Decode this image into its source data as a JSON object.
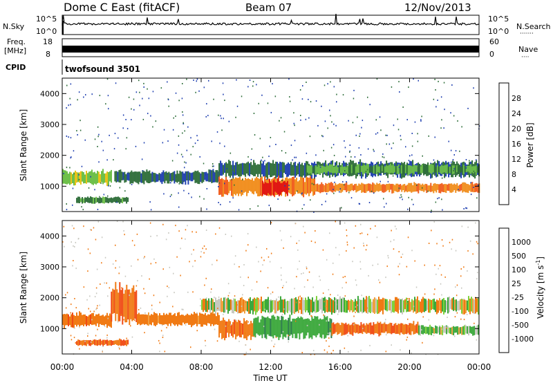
{
  "header": {
    "title": "Dome C East (fitACF)",
    "beam": "Beam 07",
    "date": "12/Nov/2013"
  },
  "nsky_panel": {
    "left_label": "N.Sky",
    "left_tick_top": "10^5",
    "left_tick_bottom": "10^0",
    "right_tick_top": "10^5",
    "right_tick_bottom": "10^0",
    "right_label": "N.Search",
    "right_label_dots": "·······"
  },
  "freq_panel": {
    "left_label_1": "Freq.",
    "left_label_2": "[MHz]",
    "left_tick_top": "18",
    "left_tick_bottom": "8",
    "right_tick_top": "60",
    "right_tick_bottom": "0",
    "right_label": "Nave",
    "right_label_dots": "····"
  },
  "cpid_panel": {
    "left_label": "CPID",
    "program": "twofsound 3501"
  },
  "power_panel": {
    "ylabel": "Slant Range [km]",
    "yticks": [
      "4000",
      "3000",
      "2000",
      "1000"
    ],
    "colorbar_label": "Power [dB]",
    "colorbar_ticks": [
      "28",
      "24",
      "20",
      "16",
      "12",
      "8",
      "4"
    ],
    "colors": [
      "#0a1cf0",
      "#1f3fb0",
      "#2f6e3a",
      "#6ec04a",
      "#e8c21a",
      "#f08c1a",
      "#f05a1a",
      "#e01414"
    ]
  },
  "velocity_panel": {
    "ylabel": "Slant Range [km]",
    "yticks": [
      "4000",
      "3000",
      "2000",
      "1000"
    ],
    "colorbar_label": "Velocity [m s",
    "colorbar_label_sup": "-1",
    "colorbar_label_end": "]",
    "colorbar_ticks": [
      "1000",
      "500",
      "100",
      "25",
      "-25",
      "-100",
      "-500",
      "-1000"
    ],
    "colors": [
      "#1a3cc8",
      "#2a7a4a",
      "#3ca83c",
      "#7ed23c",
      "#c8c8c0",
      "#f0a040",
      "#f07a14",
      "#f04a14",
      "#e01414"
    ]
  },
  "xaxis": {
    "label": "Time UT",
    "ticks": [
      "00:00",
      "04:00",
      "08:00",
      "12:00",
      "16:00",
      "20:00",
      "00:00"
    ]
  },
  "chart_data": {
    "type": "heatmap",
    "title": "Dome C East (fitACF)",
    "xlabel": "Time UT",
    "ylabel": "Slant Range [km]",
    "xlim": [
      0,
      24
    ],
    "ylim": [
      180,
      4500
    ],
    "series": [
      {
        "name": "Power [dB]",
        "range": [
          0,
          30
        ],
        "bands": [
          {
            "t0": 0.0,
            "t1": 2.8,
            "r_low": 1050,
            "r_high": 1500,
            "value": 14
          },
          {
            "t0": 0.8,
            "t1": 3.8,
            "r_low": 450,
            "r_high": 650,
            "value": 10
          },
          {
            "t0": 3.0,
            "t1": 9.0,
            "r_low": 1100,
            "r_high": 1500,
            "value": 8
          },
          {
            "t0": 9.0,
            "t1": 14.5,
            "r_low": 700,
            "r_high": 1300,
            "value": 22
          },
          {
            "t0": 11.5,
            "t1": 13.0,
            "r_low": 700,
            "r_high": 1200,
            "value": 28
          },
          {
            "t0": 14.5,
            "t1": 24.0,
            "r_low": 800,
            "r_high": 1100,
            "value": 22
          },
          {
            "t0": 9.0,
            "t1": 24.0,
            "r_low": 1300,
            "r_high": 1800,
            "value": 8
          },
          {
            "t0": 14.0,
            "t1": 24.0,
            "r_low": 1400,
            "r_high": 1700,
            "value": 12
          }
        ]
      },
      {
        "name": "Velocity [m s-1]",
        "range": [
          -1000,
          1000
        ],
        "bands": [
          {
            "t0": 0.0,
            "t1": 2.8,
            "r_low": 1050,
            "r_high": 1500,
            "value": -200
          },
          {
            "t0": 2.8,
            "t1": 4.3,
            "r_low": 1200,
            "r_high": 2400,
            "value": -300
          },
          {
            "t0": 0.8,
            "t1": 3.8,
            "r_low": 450,
            "r_high": 650,
            "value": -300
          },
          {
            "t0": 4.3,
            "t1": 9.0,
            "r_low": 1100,
            "r_high": 1500,
            "value": -150
          },
          {
            "t0": 9.0,
            "t1": 11.0,
            "r_low": 700,
            "r_high": 1300,
            "value": -200
          },
          {
            "t0": 11.0,
            "t1": 15.5,
            "r_low": 700,
            "r_high": 1400,
            "value": 200
          },
          {
            "t0": 15.5,
            "t1": 20.5,
            "r_low": 800,
            "r_high": 1200,
            "value": -300
          },
          {
            "t0": 20.5,
            "t1": 24.0,
            "r_low": 800,
            "r_high": 1100,
            "value": 80
          },
          {
            "t0": 8.0,
            "t1": 24.0,
            "r_low": 1500,
            "r_high": 2000,
            "value": 0
          }
        ]
      }
    ]
  }
}
